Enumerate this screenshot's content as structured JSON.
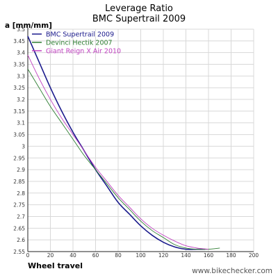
{
  "chart_data": {
    "type": "line",
    "title": "Leverage Ratio",
    "subtitle": "BMC Supertrail 2009",
    "ylabel": "a [mm/mm]",
    "xlabel": "Wheel travel",
    "credit": "www.bikechecker.com",
    "xlim": [
      0,
      200
    ],
    "ylim": [
      2.55,
      3.5
    ],
    "x_ticks": [
      0,
      20,
      40,
      60,
      80,
      100,
      120,
      140,
      160,
      180,
      200
    ],
    "y_ticks": [
      2.55,
      2.6,
      2.65,
      2.7,
      2.75,
      2.8,
      2.85,
      2.9,
      2.95,
      3,
      3.05,
      3.1,
      3.15,
      3.2,
      3.25,
      3.3,
      3.35,
      3.4,
      3.45,
      3.5
    ],
    "y_tick_labels": [
      "2.55",
      "2.6",
      "2.65",
      "2.7",
      "2.75",
      "2.8",
      "2.85",
      "2.9",
      "2.95",
      "3",
      "3.05",
      "3.1",
      "3.15",
      "3.2",
      "3.25",
      "3.3",
      "3.35",
      "3.4",
      "3.45",
      "3.5"
    ],
    "grid": true,
    "legend_position": "top-left",
    "series": [
      {
        "name": "BMC Supertrail 2009",
        "color": "#1a1a8c",
        "x": [
          0,
          10,
          20,
          30,
          40,
          50,
          60,
          70,
          80,
          90,
          100,
          110,
          120,
          130,
          140,
          150,
          157
        ],
        "y": [
          3.47,
          3.36,
          3.25,
          3.15,
          3.06,
          2.98,
          2.9,
          2.83,
          2.76,
          2.71,
          2.66,
          2.62,
          2.59,
          2.57,
          2.56,
          2.56,
          2.56
        ]
      },
      {
        "name": "Devinci Hectik 2007",
        "color": "#2e7d32",
        "x": [
          0,
          10,
          20,
          30,
          40,
          50,
          60,
          70,
          80,
          90,
          100,
          110,
          120,
          130,
          140,
          150,
          160,
          170
        ],
        "y": [
          3.33,
          3.25,
          3.17,
          3.1,
          3.03,
          2.96,
          2.9,
          2.84,
          2.78,
          2.73,
          2.68,
          2.64,
          2.61,
          2.58,
          2.565,
          2.56,
          2.56,
          2.565
        ]
      },
      {
        "name": "Giant Reign X Air 2010",
        "color": "#c040c0",
        "x": [
          0,
          10,
          20,
          30,
          40,
          50,
          60,
          70,
          80,
          90,
          100,
          110,
          120,
          130,
          140,
          150,
          160
        ],
        "y": [
          3.39,
          3.29,
          3.2,
          3.12,
          3.05,
          2.98,
          2.91,
          2.85,
          2.79,
          2.74,
          2.69,
          2.65,
          2.62,
          2.595,
          2.575,
          2.565,
          2.56
        ]
      }
    ]
  }
}
